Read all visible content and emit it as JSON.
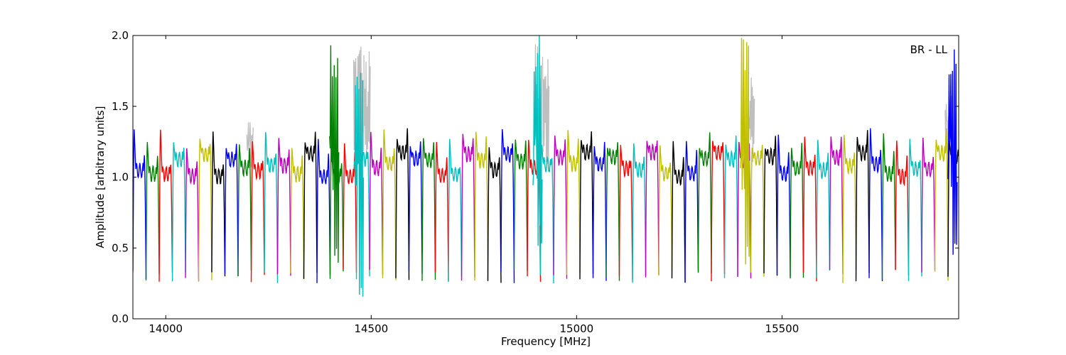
{
  "chart_data": {
    "type": "line",
    "xlabel": "Frequency [MHz]",
    "ylabel": "Amplitude [arbitrary units]",
    "annotation": "BR - LL",
    "xlim": [
      13920,
      15930
    ],
    "ylim": [
      0.0,
      2.0
    ],
    "x_ticks": [
      14000,
      14500,
      15000,
      15500
    ],
    "y_ticks": [
      0.0,
      0.5,
      1.0,
      1.5,
      2.0
    ],
    "x_tick_labels": [
      "14000",
      "14500",
      "15000",
      "15500"
    ],
    "y_tick_labels": [
      "0.0",
      "0.5",
      "1.0",
      "1.5",
      "2.0"
    ],
    "legend": "none",
    "grid": false,
    "color_cycle": [
      "#0000ff",
      "#008000",
      "#ff0000",
      "#00bfbf",
      "#bf00bf",
      "#bfbf00",
      "#000000"
    ],
    "channel_width_mhz": 32,
    "channel_start_mhz": 13920,
    "channel_count": 63,
    "typical_peak": 1.35,
    "typical_plateau": 1.12,
    "typical_trough": 0.3,
    "background_series": {
      "color": "#bfbfbf",
      "spikes": [
        {
          "x": 14465,
          "y": 2.0
        },
        {
          "x": 14475,
          "y": 2.0
        },
        {
          "x": 14490,
          "y": 1.9
        },
        {
          "x": 14905,
          "y": 2.0
        },
        {
          "x": 14925,
          "y": 2.0
        },
        {
          "x": 15425,
          "y": 1.77
        },
        {
          "x": 14205,
          "y": 1.42
        },
        {
          "x": 15905,
          "y": 1.6
        }
      ]
    },
    "rfi_features": [
      {
        "x": 14410,
        "y_max": 2.0,
        "y_min": 0.35,
        "color": "#008000"
      },
      {
        "x": 14470,
        "y_max": 1.78,
        "y_min": 0.07,
        "color": "#00bfbf"
      },
      {
        "x": 14905,
        "y_max": 2.0,
        "y_min": 0.48,
        "color": "#00bfbf"
      },
      {
        "x": 15410,
        "y_max": 2.0,
        "y_min": 0.37,
        "color": "#bfbf00"
      },
      {
        "x": 15915,
        "y_max": 2.0,
        "y_min": 0.4,
        "color": "#0000ff"
      }
    ]
  }
}
